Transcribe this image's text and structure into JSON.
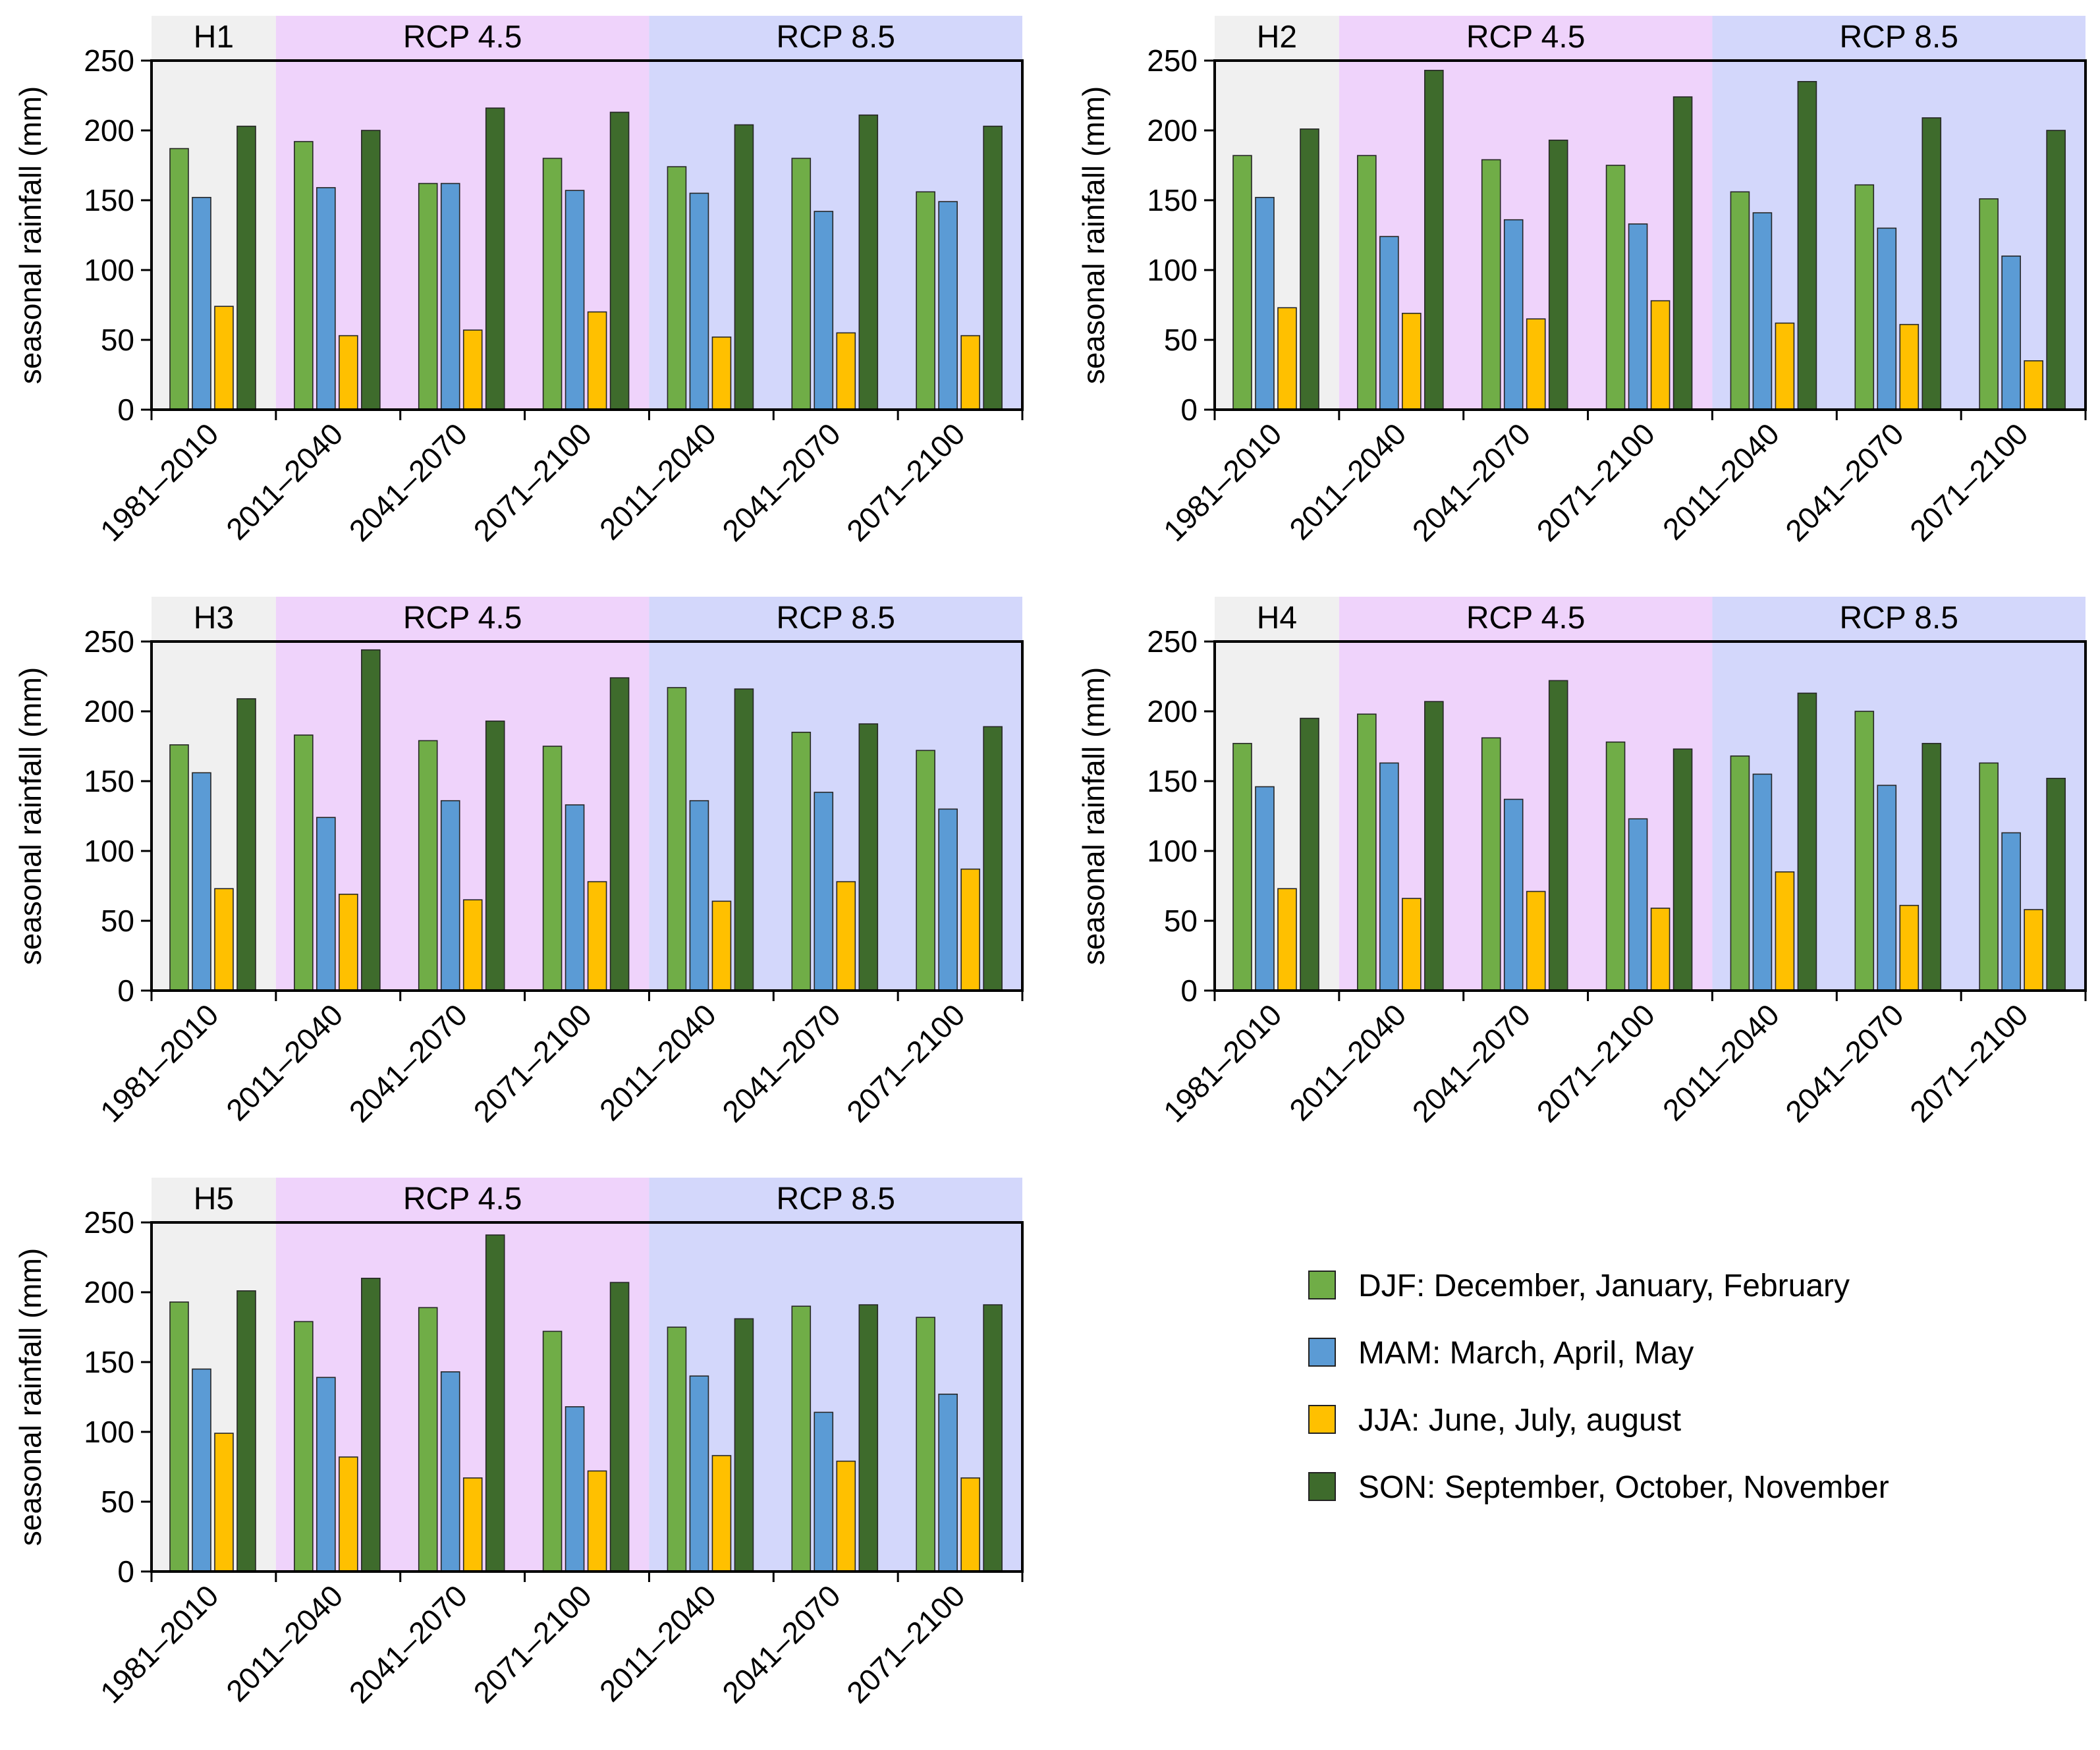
{
  "figure": {
    "y_axis_label": "seasonal rainfall (mm)",
    "categories": [
      "1981–2010",
      "2011–2040",
      "2041–2070",
      "2071–2100",
      "2011–2040",
      "2041–2070",
      "2071–2100"
    ],
    "bands": [
      {
        "label": "",
        "from": 0,
        "to": 1,
        "color": "#f0f0f0"
      },
      {
        "label": "RCP 4.5",
        "from": 1,
        "to": 4,
        "color": "#efd3fb"
      },
      {
        "label": "RCP 8.5",
        "from": 4,
        "to": 7,
        "color": "#d3d7fb"
      }
    ],
    "series_colors": {
      "DJF": "#70ad47",
      "MAM": "#5b9bd5",
      "JJA": "#ffc000",
      "SON": "#3e6b2c"
    },
    "ylim": [
      0,
      250
    ],
    "yticks": [
      "0",
      "50",
      "100",
      "150",
      "200",
      "250"
    ]
  },
  "legend": {
    "items": [
      {
        "key": "DJF",
        "label": "DJF: December, January, February",
        "color": "#70ad47"
      },
      {
        "key": "MAM",
        "label": "MAM: March, April, May",
        "color": "#5b9bd5"
      },
      {
        "key": "JJA",
        "label": "JJA: June, July, august",
        "color": "#ffc000"
      },
      {
        "key": "SON",
        "label": "SON: September, October, November",
        "color": "#3e6b2c"
      }
    ]
  },
  "chart_data": [
    {
      "type": "bar",
      "title": "H1",
      "xlabel": "",
      "ylabel": "seasonal rainfall (mm)",
      "ylim": [
        0,
        250
      ],
      "categories": [
        "1981–2010",
        "2011–2040",
        "2041–2070",
        "2071–2100",
        "2011–2040",
        "2041–2070",
        "2071–2100"
      ],
      "series": [
        {
          "name": "DJF",
          "values": [
            187,
            192,
            162,
            180,
            174,
            180,
            156
          ]
        },
        {
          "name": "MAM",
          "values": [
            152,
            159,
            162,
            157,
            155,
            142,
            149
          ]
        },
        {
          "name": "JJA",
          "values": [
            74,
            53,
            57,
            70,
            52,
            55,
            53
          ]
        },
        {
          "name": "SON",
          "values": [
            203,
            200,
            216,
            213,
            204,
            211,
            203
          ]
        }
      ]
    },
    {
      "type": "bar",
      "title": "H2",
      "xlabel": "",
      "ylabel": "seasonal rainfall (mm)",
      "ylim": [
        0,
        250
      ],
      "categories": [
        "1981–2010",
        "2011–2040",
        "2041–2070",
        "2071–2100",
        "2011–2040",
        "2041–2070",
        "2071–2100"
      ],
      "series": [
        {
          "name": "DJF",
          "values": [
            182,
            182,
            179,
            175,
            156,
            161,
            151
          ]
        },
        {
          "name": "MAM",
          "values": [
            152,
            124,
            136,
            133,
            141,
            130,
            110
          ]
        },
        {
          "name": "JJA",
          "values": [
            73,
            69,
            65,
            78,
            62,
            61,
            35
          ]
        },
        {
          "name": "SON",
          "values": [
            201,
            243,
            193,
            224,
            235,
            209,
            200
          ]
        }
      ]
    },
    {
      "type": "bar",
      "title": "H3",
      "xlabel": "",
      "ylabel": "seasonal rainfall (mm)",
      "ylim": [
        0,
        250
      ],
      "categories": [
        "1981–2010",
        "2011–2040",
        "2041–2070",
        "2071–2100",
        "2011–2040",
        "2041–2070",
        "2071–2100"
      ],
      "series": [
        {
          "name": "DJF",
          "values": [
            176,
            183,
            179,
            175,
            217,
            185,
            172
          ]
        },
        {
          "name": "MAM",
          "values": [
            156,
            124,
            136,
            133,
            136,
            142,
            130
          ]
        },
        {
          "name": "JJA",
          "values": [
            73,
            69,
            65,
            78,
            64,
            78,
            87
          ]
        },
        {
          "name": "SON",
          "values": [
            209,
            244,
            193,
            224,
            216,
            191,
            189
          ]
        }
      ]
    },
    {
      "type": "bar",
      "title": "H4",
      "xlabel": "",
      "ylabel": "seasonal rainfall (mm)",
      "ylim": [
        0,
        250
      ],
      "categories": [
        "1981–2010",
        "2011–2040",
        "2041–2070",
        "2071–2100",
        "2011–2040",
        "2041–2070",
        "2071–2100"
      ],
      "series": [
        {
          "name": "DJF",
          "values": [
            177,
            198,
            181,
            178,
            168,
            200,
            163
          ]
        },
        {
          "name": "MAM",
          "values": [
            146,
            163,
            137,
            123,
            155,
            147,
            113
          ]
        },
        {
          "name": "JJA",
          "values": [
            73,
            66,
            71,
            59,
            85,
            61,
            58
          ]
        },
        {
          "name": "SON",
          "values": [
            195,
            207,
            222,
            173,
            213,
            177,
            152
          ]
        }
      ]
    },
    {
      "type": "bar",
      "title": "H5",
      "xlabel": "",
      "ylabel": "seasonal rainfall (mm)",
      "ylim": [
        0,
        250
      ],
      "categories": [
        "1981–2010",
        "2011–2040",
        "2041–2070",
        "2071–2100",
        "2011–2040",
        "2041–2070",
        "2071–2100"
      ],
      "series": [
        {
          "name": "DJF",
          "values": [
            193,
            179,
            189,
            172,
            175,
            190,
            182
          ]
        },
        {
          "name": "MAM",
          "values": [
            145,
            139,
            143,
            118,
            140,
            114,
            127
          ]
        },
        {
          "name": "JJA",
          "values": [
            99,
            82,
            67,
            72,
            83,
            79,
            67
          ]
        },
        {
          "name": "SON",
          "values": [
            201,
            210,
            241,
            207,
            181,
            191,
            191
          ]
        }
      ]
    }
  ]
}
